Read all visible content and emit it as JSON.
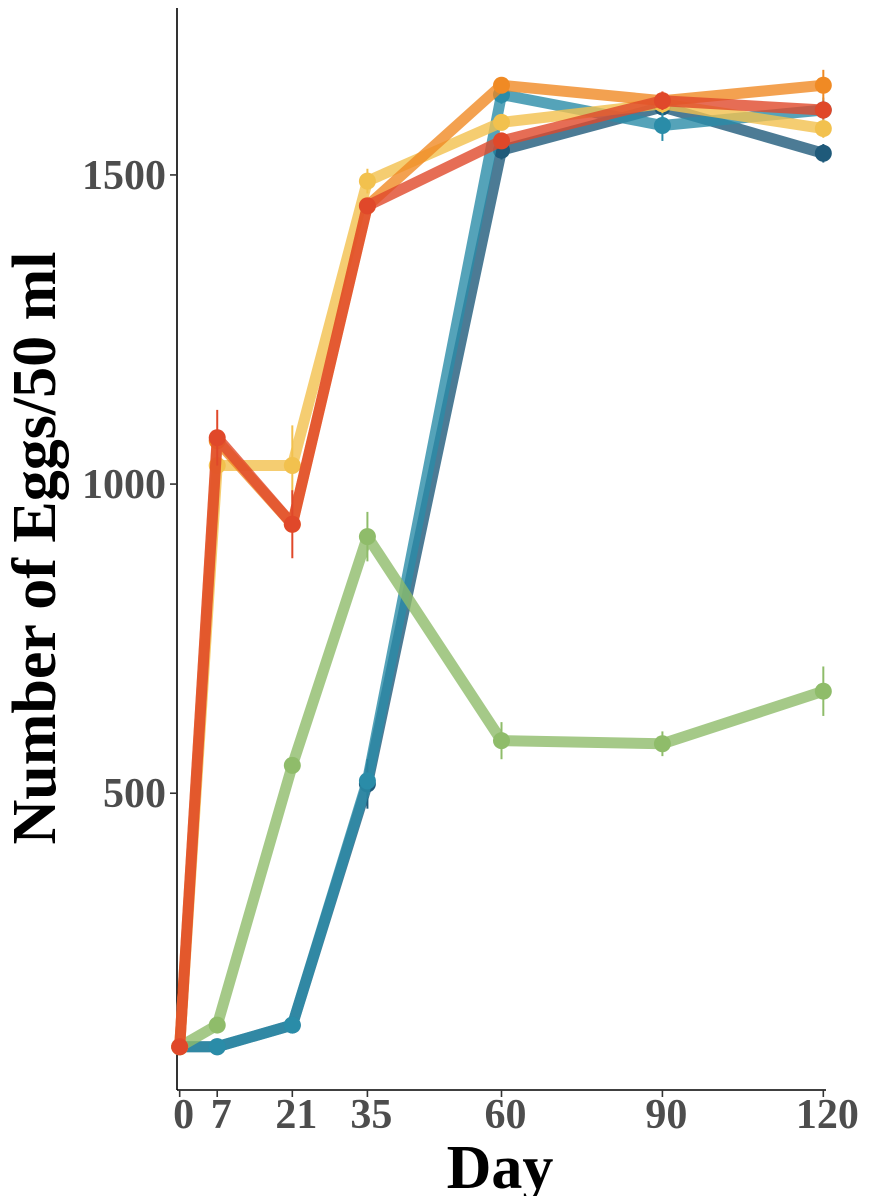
{
  "chart_data": {
    "type": "line",
    "xlabel": "Day",
    "ylabel": "Number of Eggs/50 ml",
    "x": [
      0,
      7,
      21,
      35,
      60,
      90,
      120
    ],
    "x_ticks": [
      "0",
      "7",
      "21",
      "35",
      "60",
      "90",
      "120"
    ],
    "y_ticks": [
      "500",
      "1000",
      "1500"
    ],
    "xlim": [
      -0.5,
      120.5
    ],
    "ylim": [
      20,
      1770
    ],
    "grid": false,
    "legend": "none",
    "series": [
      {
        "color": "#1f5a7a",
        "values": [
          90,
          90,
          125,
          515,
          1540,
          1610,
          1535
        ],
        "err": [
          0,
          0,
          0,
          40,
          15,
          20,
          15
        ]
      },
      {
        "color": "#2a8ca8",
        "values": [
          90,
          90,
          125,
          520,
          1630,
          1580,
          1605
        ],
        "err": [
          0,
          0,
          0,
          0,
          15,
          25,
          20
        ]
      },
      {
        "color": "#8fbc6a",
        "values": [
          90,
          125,
          545,
          915,
          585,
          580,
          665
        ],
        "err": [
          0,
          0,
          0,
          40,
          30,
          20,
          40
        ]
      },
      {
        "color": "#f2c14e",
        "values": [
          90,
          1030,
          1030,
          1490,
          1585,
          1615,
          1575
        ],
        "err": [
          0,
          0,
          65,
          20,
          10,
          15,
          15
        ]
      },
      {
        "color": "#f08a24",
        "values": [
          90,
          1070,
          935,
          1450,
          1645,
          1620,
          1645
        ],
        "err": [
          0,
          0,
          0,
          0,
          10,
          15,
          25
        ]
      },
      {
        "color": "#e0482a",
        "values": [
          90,
          1075,
          935,
          1450,
          1555,
          1620,
          1605
        ],
        "err": [
          0,
          45,
          55,
          0,
          10,
          15,
          15
        ]
      }
    ]
  }
}
